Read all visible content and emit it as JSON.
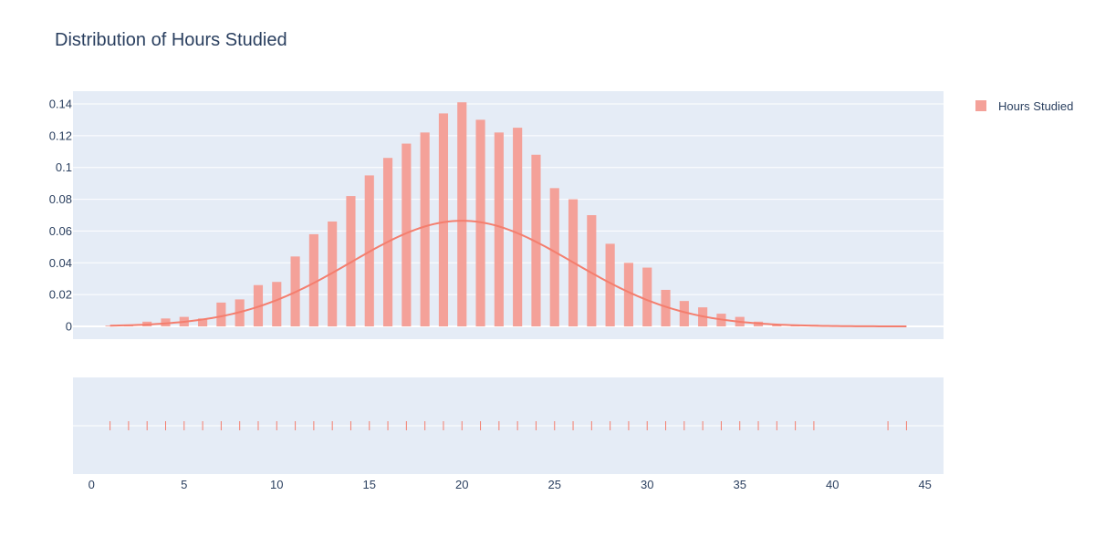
{
  "chart_data": {
    "type": "bar",
    "title": "Distribution of Hours Studied",
    "legend": {
      "position": "top-right",
      "entries": [
        "Hours Studied"
      ]
    },
    "colors": {
      "bar": "#f4a199",
      "line": "#f47e6e",
      "rug": "#f47e6e",
      "plot_bg": "#e5ecf6",
      "grid": "#ffffff",
      "text": "#2a3f5f"
    },
    "histogram": {
      "name": "Hours Studied",
      "x": [
        1,
        2,
        3,
        4,
        5,
        6,
        7,
        8,
        9,
        10,
        11,
        12,
        13,
        14,
        15,
        16,
        17,
        18,
        19,
        20,
        21,
        22,
        23,
        24,
        25,
        26,
        27,
        28,
        29,
        30,
        31,
        32,
        33,
        34,
        35,
        36,
        37,
        38,
        39,
        40,
        41,
        42,
        43,
        44
      ],
      "values": [
        0.0005,
        0.001,
        0.003,
        0.005,
        0.006,
        0.005,
        0.015,
        0.017,
        0.026,
        0.028,
        0.044,
        0.058,
        0.066,
        0.082,
        0.095,
        0.106,
        0.115,
        0.122,
        0.134,
        0.141,
        0.13,
        0.122,
        0.125,
        0.108,
        0.087,
        0.08,
        0.07,
        0.052,
        0.04,
        0.037,
        0.023,
        0.016,
        0.012,
        0.008,
        0.006,
        0.003,
        0.001,
        0.001,
        0.001,
        0,
        0,
        0,
        0,
        0
      ]
    },
    "density_curve": {
      "type": "line",
      "mean": 20,
      "std": 6
    },
    "rug": {
      "x": [
        1,
        2,
        3,
        4,
        5,
        6,
        7,
        8,
        9,
        10,
        11,
        12,
        13,
        14,
        15,
        16,
        17,
        18,
        19,
        20,
        21,
        22,
        23,
        24,
        25,
        26,
        27,
        28,
        29,
        30,
        31,
        32,
        33,
        34,
        35,
        36,
        37,
        38,
        39,
        43,
        44
      ]
    },
    "xaxis": {
      "range": [
        -1,
        46
      ],
      "ticks": [
        0,
        5,
        10,
        15,
        20,
        25,
        30,
        35,
        40,
        45
      ]
    },
    "yaxis": {
      "range": [
        -0.008,
        0.148
      ],
      "ticks": [
        0,
        0.02,
        0.04,
        0.06,
        0.08,
        0.1,
        0.12,
        0.14
      ],
      "tick_labels": [
        "0",
        "0.02",
        "0.04",
        "0.06",
        "0.08",
        "0.1",
        "0.12",
        "0.14"
      ]
    },
    "grid": true
  }
}
